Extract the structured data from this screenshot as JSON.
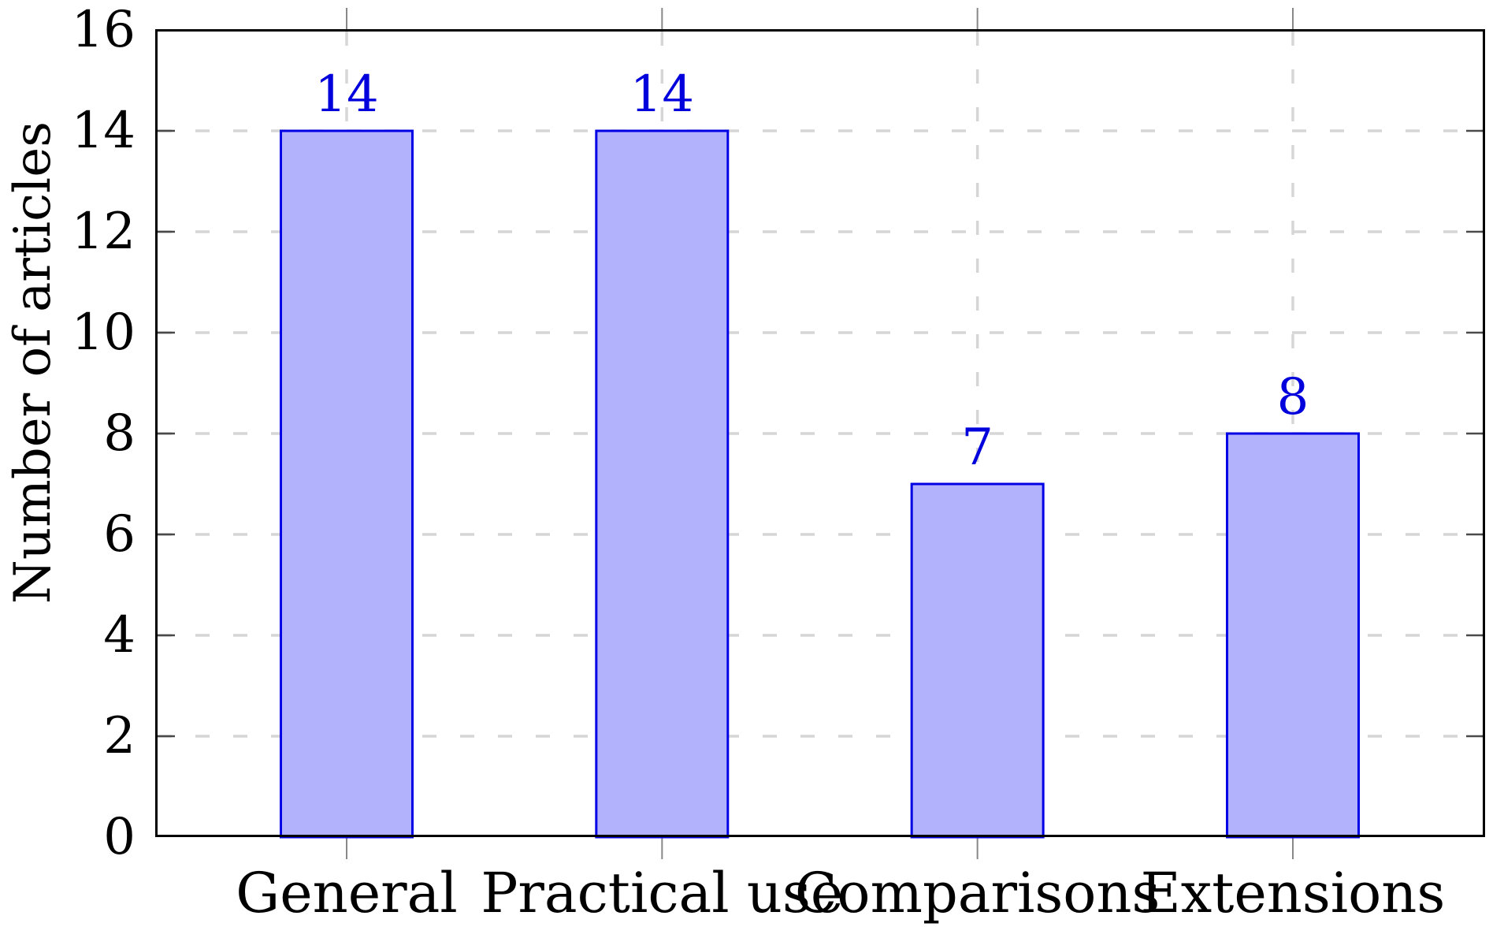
{
  "chart_data": {
    "type": "bar",
    "title": "",
    "xlabel": "",
    "ylabel": "Number of articles",
    "categories": [
      "General",
      "Practical use",
      "Comparisons",
      "Extensions"
    ],
    "values": [
      14,
      14,
      7,
      8
    ],
    "bar_value_labels": [
      "14",
      "14",
      "7",
      "8"
    ],
    "yticks": [
      "0",
      "2",
      "4",
      "6",
      "8",
      "10",
      "12",
      "14",
      "16"
    ],
    "ylim": [
      0,
      16
    ],
    "grid": "dashed horizontal and vertical gridlines",
    "legend_position": "none",
    "colors": {
      "bar_fill": "#b2b2fc",
      "bar_border": "#0000e6",
      "value_label_text": "#0000dd",
      "gridline": "#d6d6d6",
      "axis_frame": "#000000",
      "inner_tick": "#4a4a4a",
      "outer_tick": "#888888",
      "label_text": "#000000",
      "background": "#ffffff"
    }
  }
}
